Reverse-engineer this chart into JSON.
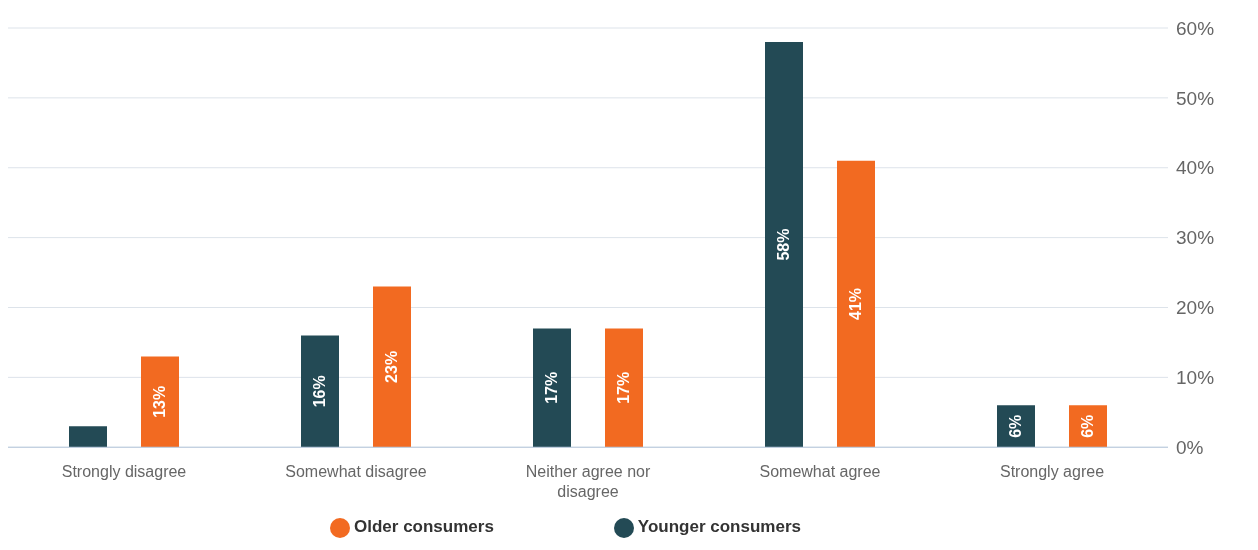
{
  "chart_data": {
    "type": "bar",
    "categories": [
      "Strongly disagree",
      "Somewhat disagree",
      "Neither agree nor disagree",
      "Somewhat agree",
      "Strongly agree"
    ],
    "series": [
      {
        "name": "Younger consumers",
        "color": "#234a55",
        "values": [
          3,
          16,
          17,
          58,
          6
        ],
        "value_labels": [
          null,
          "16%",
          "17%",
          "58%",
          "6%"
        ]
      },
      {
        "name": "Older consumers",
        "color": "#f26a21",
        "values": [
          13,
          23,
          17,
          41,
          6
        ],
        "value_labels": [
          "13%",
          "23%",
          "17%",
          "41%",
          "6%"
        ]
      }
    ],
    "ylim": [
      0,
      60
    ],
    "yticks": [
      {
        "value": 0,
        "label": "0%"
      },
      {
        "value": 10,
        "label": "10%"
      },
      {
        "value": 20,
        "label": "20%"
      },
      {
        "value": 30,
        "label": "30%"
      },
      {
        "value": 40,
        "label": "40%"
      },
      {
        "value": 50,
        "label": "50%"
      },
      {
        "value": 60,
        "label": "60%"
      }
    ],
    "grid": "y",
    "legend": "bottom"
  }
}
